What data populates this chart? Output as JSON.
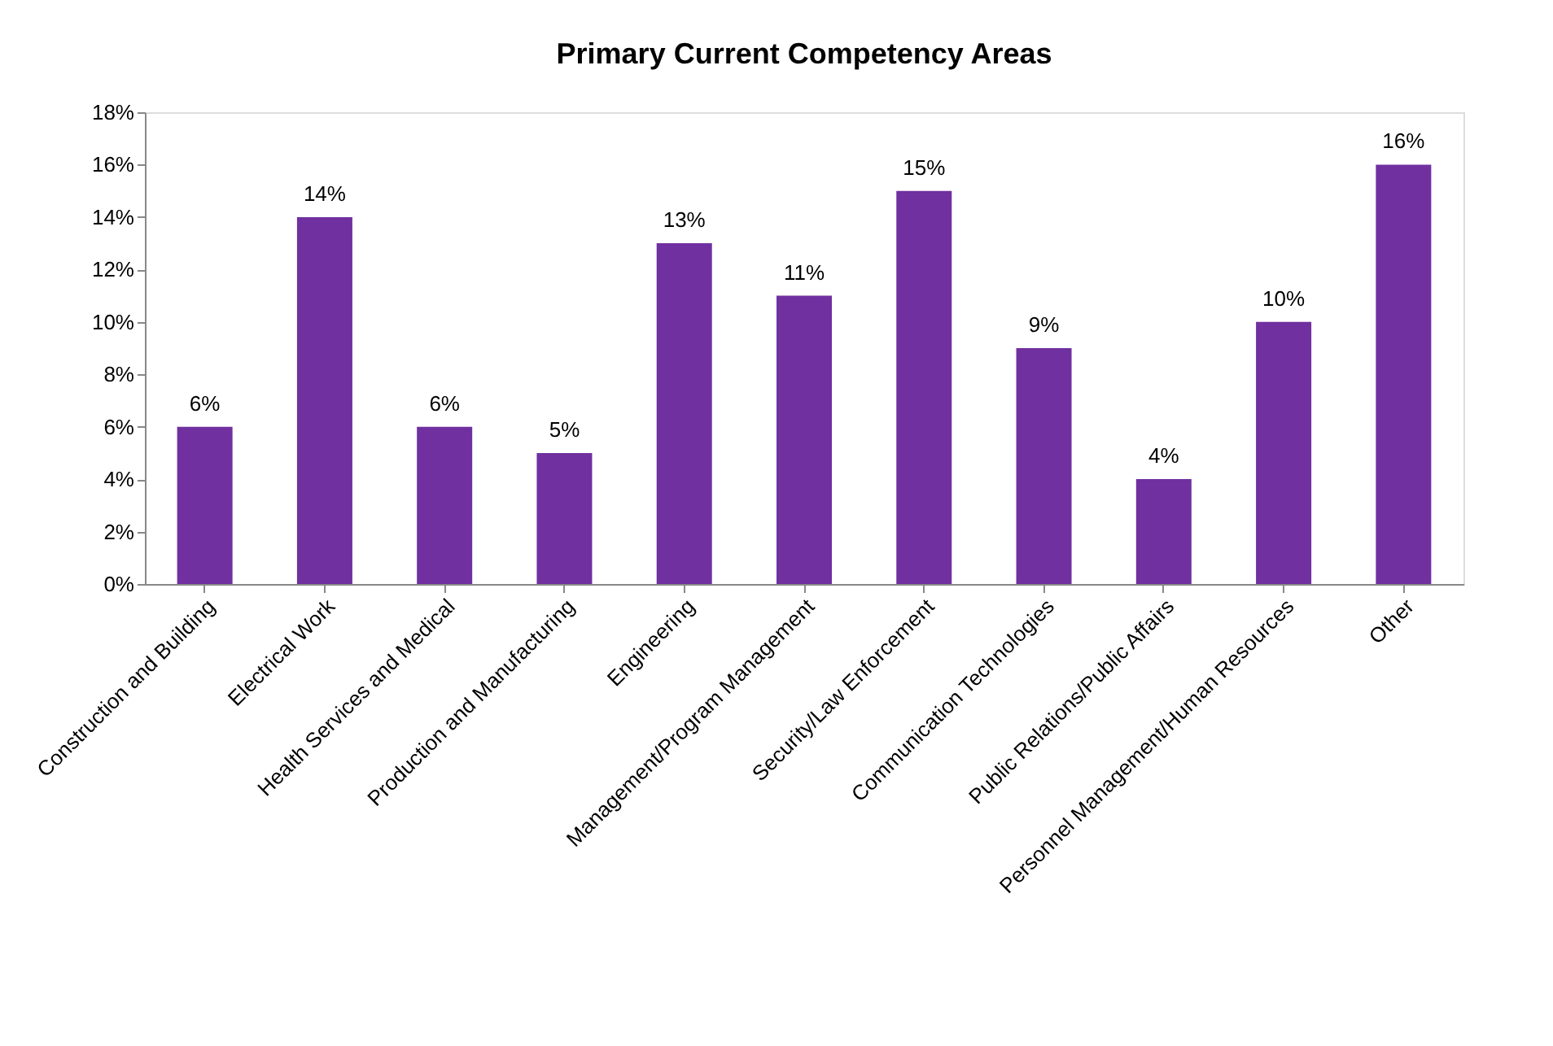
{
  "chart_data": {
    "type": "bar",
    "title": "Primary  Current Competency Areas",
    "categories": [
      "Construction and Building",
      "Electrical Work",
      "Health Services and Medical",
      "Production and Manufacturing",
      "Engineering",
      "Management/Program Management",
      "Security/Law Enforcement",
      "Communication Technologies",
      "Public Relations/Public Affairs",
      "Personnel Management/Human Resources",
      "Other"
    ],
    "values": [
      6,
      14,
      6,
      5,
      13,
      11,
      15,
      9,
      4,
      10,
      16
    ],
    "value_labels": [
      "6%",
      "14%",
      "6%",
      "5%",
      "13%",
      "11%",
      "15%",
      "9%",
      "4%",
      "10%",
      "16%"
    ],
    "color": "#7030a0",
    "ylim": [
      0,
      18
    ],
    "yticks": [
      {
        "value": 0,
        "label": "0%"
      },
      {
        "value": 2,
        "label": "2%"
      },
      {
        "value": 4,
        "label": "4%"
      },
      {
        "value": 6,
        "label": "6%"
      },
      {
        "value": 8,
        "label": "8%"
      },
      {
        "value": 10,
        "label": "10%"
      },
      {
        "value": 12,
        "label": "12%"
      },
      {
        "value": 14,
        "label": "14%"
      },
      {
        "value": 16,
        "label": "16%"
      },
      {
        "value": 18,
        "label": "18%"
      }
    ],
    "grid": false
  }
}
